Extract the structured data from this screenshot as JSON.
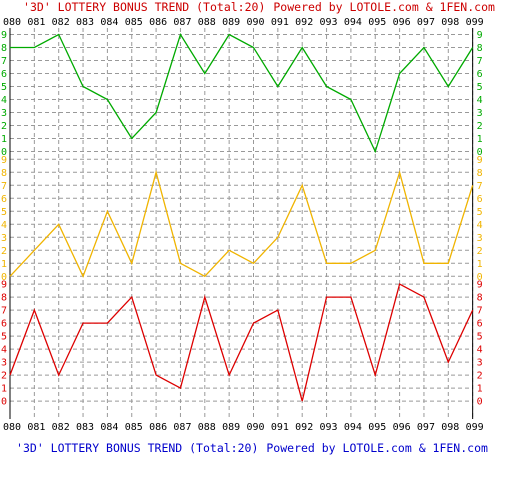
{
  "header": {
    "title_text": "'3D' LOTTERY BONUS TREND (Total:20)",
    "powered_text": "Powered by LOTOLE.com & 1FEN.com"
  },
  "footer": {
    "title_text": "'3D' LOTTERY BONUS TREND (Total:20)",
    "powered_text": "Powered by LOTOLE.com & 1FEN.com"
  },
  "colors": {
    "header_title": "#cc0000",
    "header_powered": "#cc0000",
    "footer_title": "#0000cc",
    "footer_powered": "#0000cc",
    "grid": "#999999",
    "axis": "#000000"
  },
  "chart_data": {
    "type": "line",
    "categories": [
      "080",
      "081",
      "082",
      "083",
      "084",
      "085",
      "086",
      "087",
      "088",
      "089",
      "090",
      "091",
      "092",
      "093",
      "094",
      "095",
      "096",
      "097",
      "098",
      "099"
    ],
    "digit_ticks": [
      "0",
      "1",
      "2",
      "3",
      "4",
      "5",
      "6",
      "7",
      "8",
      "9"
    ],
    "ylim": [
      0,
      9
    ],
    "grid": true,
    "series": [
      {
        "color": "#00aa00",
        "values": [
          8,
          8,
          9,
          5,
          4,
          1,
          3,
          9,
          6,
          9,
          8,
          5,
          8,
          5,
          4,
          0,
          6,
          8,
          5,
          8
        ]
      },
      {
        "color": "#f0b400",
        "values": [
          0,
          2,
          4,
          0,
          5,
          1,
          8,
          1,
          0,
          2,
          1,
          3,
          7,
          1,
          1,
          2,
          8,
          1,
          1,
          7
        ]
      },
      {
        "color": "#dd0000",
        "values": [
          2,
          7,
          2,
          6,
          6,
          8,
          2,
          1,
          8,
          2,
          6,
          7,
          0,
          8,
          8,
          2,
          9,
          8,
          3,
          7
        ]
      }
    ]
  }
}
